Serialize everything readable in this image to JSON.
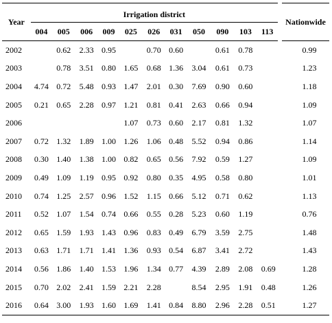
{
  "table": {
    "year_header": "Year",
    "group_header": "Irrigation district",
    "nationwide_header": "Nationwide",
    "district_codes": [
      "004",
      "005",
      "006",
      "009",
      "025",
      "026",
      "031",
      "050",
      "090",
      "103",
      "113"
    ],
    "rows": [
      {
        "year": "2002",
        "values": [
          "",
          "0.62",
          "2.33",
          "0.95",
          "",
          "0.70",
          "0.60",
          "",
          "0.61",
          "0.78",
          ""
        ],
        "nationwide": "0.99"
      },
      {
        "year": "2003",
        "values": [
          "",
          "0.78",
          "3.51",
          "0.80",
          "1.65",
          "0.68",
          "1.36",
          "3.04",
          "0.61",
          "0.73",
          ""
        ],
        "nationwide": "1.23"
      },
      {
        "year": "2004",
        "values": [
          "4.74",
          "0.72",
          "5.48",
          "0.93",
          "1.47",
          "2.01",
          "0.30",
          "7.69",
          "0.90",
          "0.60",
          ""
        ],
        "nationwide": "1.18"
      },
      {
        "year": "2005",
        "values": [
          "0.21",
          "0.65",
          "2.28",
          "0.97",
          "1.21",
          "0.81",
          "0.41",
          "2.63",
          "0.66",
          "0.94",
          ""
        ],
        "nationwide": "1.09"
      },
      {
        "year": "2006",
        "values": [
          "",
          "",
          "",
          "",
          "1.07",
          "0.73",
          "0.60",
          "2.17",
          "0.81",
          "1.32",
          ""
        ],
        "nationwide": "1.07"
      },
      {
        "year": "2007",
        "values": [
          "0.72",
          "1.32",
          "1.89",
          "1.00",
          "1.26",
          "1.06",
          "0.48",
          "5.52",
          "0.94",
          "0.86",
          ""
        ],
        "nationwide": "1.14"
      },
      {
        "year": "2008",
        "values": [
          "0.30",
          "1.40",
          "1.38",
          "1.00",
          "0.82",
          "0.65",
          "0.56",
          "7.92",
          "0.59",
          "1.27",
          ""
        ],
        "nationwide": "1.09"
      },
      {
        "year": "2009",
        "values": [
          "0.49",
          "1.09",
          "1.19",
          "0.95",
          "0.92",
          "0.80",
          "0.35",
          "4.95",
          "0.58",
          "0.80",
          ""
        ],
        "nationwide": "1.01"
      },
      {
        "year": "2010",
        "values": [
          "0.74",
          "1.25",
          "2.57",
          "0.96",
          "1.52",
          "1.15",
          "0.66",
          "5.12",
          "0.71",
          "0.62",
          ""
        ],
        "nationwide": "1.13"
      },
      {
        "year": "2011",
        "values": [
          "0.52",
          "1.07",
          "1.54",
          "0.74",
          "0.66",
          "0.55",
          "0.28",
          "5.23",
          "0.60",
          "1.19",
          ""
        ],
        "nationwide": "0.76"
      },
      {
        "year": "2012",
        "values": [
          "0.65",
          "1.59",
          "1.93",
          "1.43",
          "0.96",
          "0.83",
          "0.49",
          "6.79",
          "3.59",
          "2.75",
          ""
        ],
        "nationwide": "1.48"
      },
      {
        "year": "2013",
        "values": [
          "0.63",
          "1.71",
          "1.71",
          "1.41",
          "1.36",
          "0.93",
          "0.54",
          "6.87",
          "3.41",
          "2.72",
          ""
        ],
        "nationwide": "1.43"
      },
      {
        "year": "2014",
        "values": [
          "0.56",
          "1.86",
          "1.40",
          "1.53",
          "1.96",
          "1.34",
          "0.77",
          "4.39",
          "2.89",
          "2.08",
          "0.69"
        ],
        "nationwide": "1.28"
      },
      {
        "year": "2015",
        "values": [
          "0.70",
          "2.02",
          "2.41",
          "1.59",
          "2.21",
          "2.28",
          "",
          "8.54",
          "2.95",
          "1.91",
          "0.48"
        ],
        "nationwide": "1.26"
      },
      {
        "year": "2016",
        "values": [
          "0.64",
          "3.00",
          "1.93",
          "1.60",
          "1.69",
          "1.41",
          "0.84",
          "8.80",
          "2.96",
          "2.28",
          "0.51"
        ],
        "nationwide": "1.27"
      }
    ]
  }
}
